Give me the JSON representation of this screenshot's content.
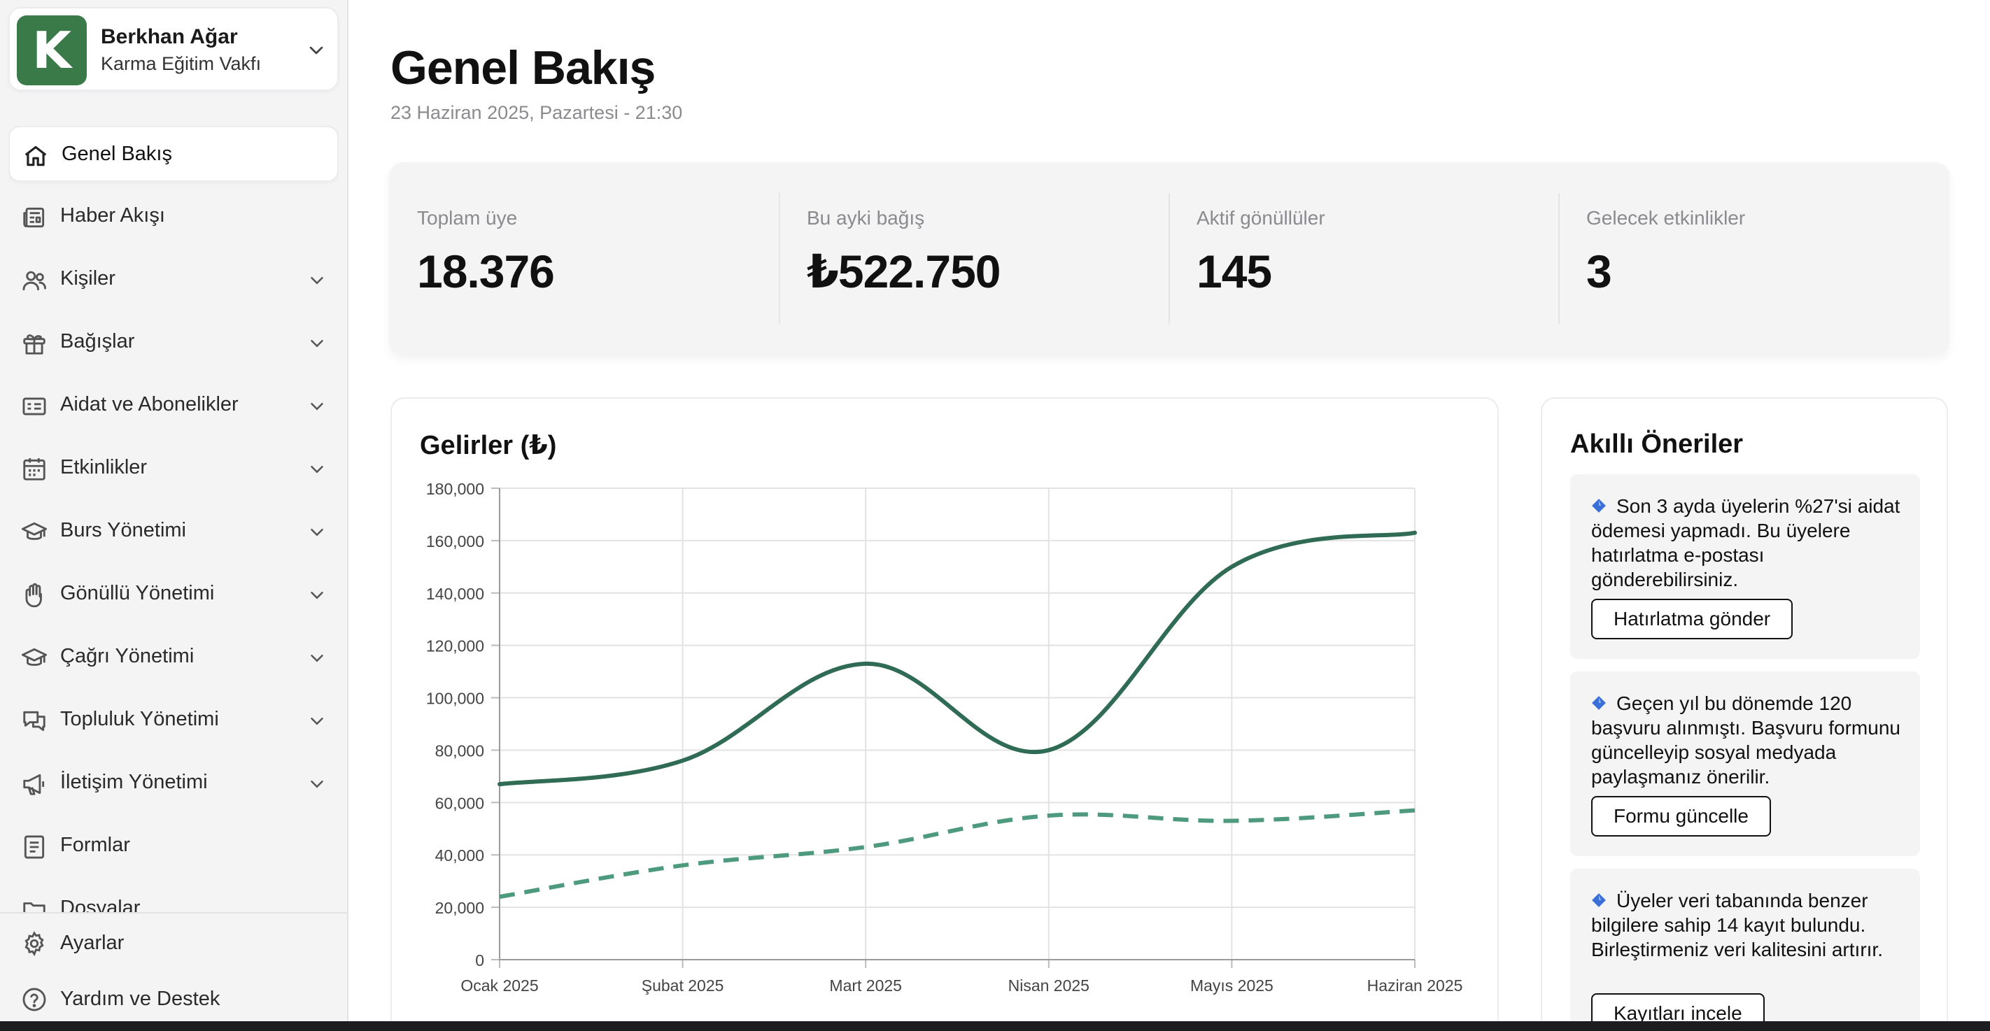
{
  "org": {
    "logo_letter": "K",
    "user_name": "Berkhan Ağar",
    "org_name": "Karma Eğitim Vakfı"
  },
  "nav": {
    "items": [
      {
        "label": "Genel Bakış"
      },
      {
        "label": "Haber Akışı"
      },
      {
        "label": "Kişiler"
      },
      {
        "label": "Bağışlar"
      },
      {
        "label": "Aidat ve Abonelikler"
      },
      {
        "label": "Etkinlikler"
      },
      {
        "label": "Burs Yönetimi"
      },
      {
        "label": "Gönüllü Yönetimi"
      },
      {
        "label": "Çağrı Yönetimi"
      },
      {
        "label": "Topluluk Yönetimi"
      },
      {
        "label": "İletişim Yönetimi"
      },
      {
        "label": "Formlar"
      },
      {
        "label": "Dosyalar"
      }
    ],
    "settings_label": "Ayarlar",
    "help_label": "Yardım ve Destek"
  },
  "header": {
    "title": "Genel Bakış",
    "date": "23 Haziran 2025, Pazartesi - 21:30"
  },
  "stats": [
    {
      "label": "Toplam üye",
      "value": "18.376"
    },
    {
      "label": "Bu ayki bağış",
      "value": "₺522.750"
    },
    {
      "label": "Aktif gönüllüler",
      "value": "145"
    },
    {
      "label": "Gelecek etkinlikler",
      "value": "3"
    }
  ],
  "chart_title": "Gelirler (₺)",
  "chart_data": {
    "type": "line",
    "title": "Gelirler (₺)",
    "categories": [
      "Ocak 2025",
      "Şubat 2025",
      "Mart 2025",
      "Nisan 2025",
      "Mayıs 2025",
      "Haziran 2025"
    ],
    "series": [
      {
        "name": "solid",
        "style": "solid",
        "color": "#2f6b55",
        "values": [
          67000,
          76000,
          113000,
          80000,
          150000,
          163000
        ]
      },
      {
        "name": "dashed",
        "style": "dashed",
        "color": "#4d9a7e",
        "values": [
          24000,
          36000,
          43000,
          55000,
          53000,
          57000
        ]
      }
    ],
    "yticks": [
      "180,000",
      "160,000",
      "140,000",
      "120,000",
      "100,000",
      "80,000",
      "60,000",
      "40,000",
      "20,000",
      "0"
    ],
    "ylim": [
      0,
      180000
    ],
    "grid": true
  },
  "suggestions": {
    "title": "Akıllı Öneriler",
    "items": [
      {
        "text": "Son 3 ayda üyelerin %27'si aidat ödemesi yapmadı. Bu üyelere hatırlatma e-postası gönderebilirsiniz.",
        "button": "Hatırlatma gönder"
      },
      {
        "text": "Geçen yıl bu dönemde 120 başvuru alınmıştı. Başvuru formunu güncelleyip sosyal medyada paylaşmanız önerilir.",
        "button": "Formu güncelle"
      },
      {
        "text": "Üyeler veri tabanında benzer bilgilere sahip 14 kayıt bulundu. Birleştirmeniz veri kalitesini artırır.",
        "button": "Kayıtları incele"
      }
    ]
  },
  "colors": {
    "brand": "#3a7a48",
    "line_solid": "#2f6b55",
    "line_dashed": "#4d9a7e",
    "suggestion_icon": "#3b6fd8"
  }
}
